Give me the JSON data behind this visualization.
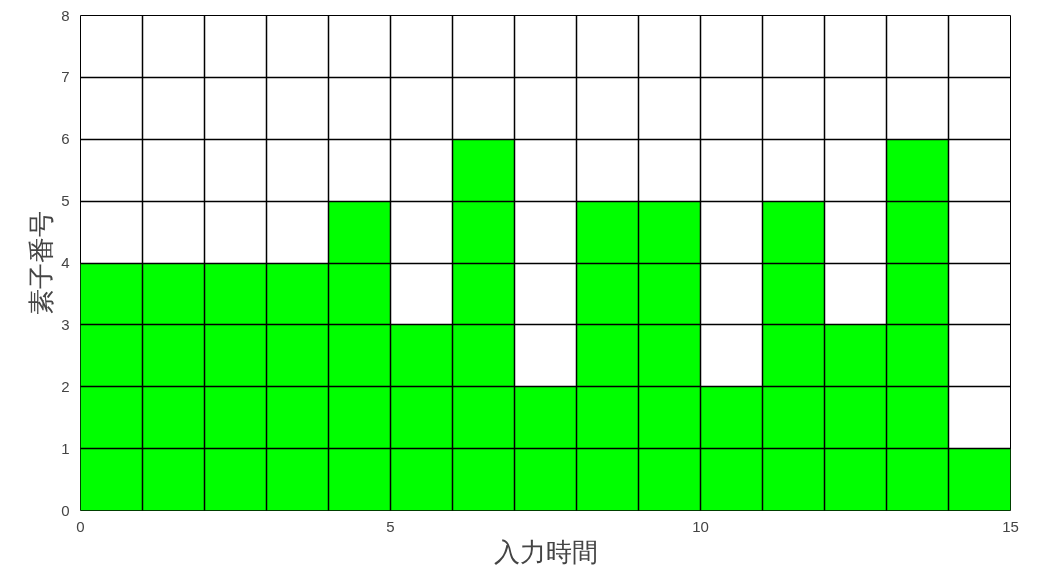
{
  "chart_data": {
    "type": "histogram",
    "xlabel": "入力時間",
    "ylabel": "素子番号",
    "bins": [
      0,
      1,
      2,
      3,
      4,
      5,
      6,
      7,
      8,
      9,
      10,
      11,
      12,
      13,
      14,
      15
    ],
    "values": [
      4,
      4,
      4,
      4,
      5,
      3,
      6,
      2,
      5,
      5,
      2,
      5,
      3,
      6,
      1
    ],
    "color": "#00ff00",
    "xlim": [
      0,
      15
    ],
    "ylim": [
      0,
      8
    ],
    "xticks": [
      0,
      {
        "value": 1,
        "label": null
      },
      {
        "value": 2,
        "label": null
      },
      {
        "value": 3,
        "label": null
      },
      {
        "value": 4,
        "label": null
      },
      5,
      {
        "value": 6,
        "label": null
      },
      {
        "value": 7,
        "label": null
      },
      {
        "value": 8,
        "label": null
      },
      {
        "value": 9,
        "label": null
      },
      10,
      {
        "value": 11,
        "label": null
      },
      {
        "value": 12,
        "label": null
      },
      {
        "value": 13,
        "label": null
      },
      {
        "value": 14,
        "label": null
      },
      15
    ],
    "yticks": [
      0,
      1,
      2,
      3,
      4,
      5,
      6,
      7,
      8
    ],
    "grid": true
  }
}
